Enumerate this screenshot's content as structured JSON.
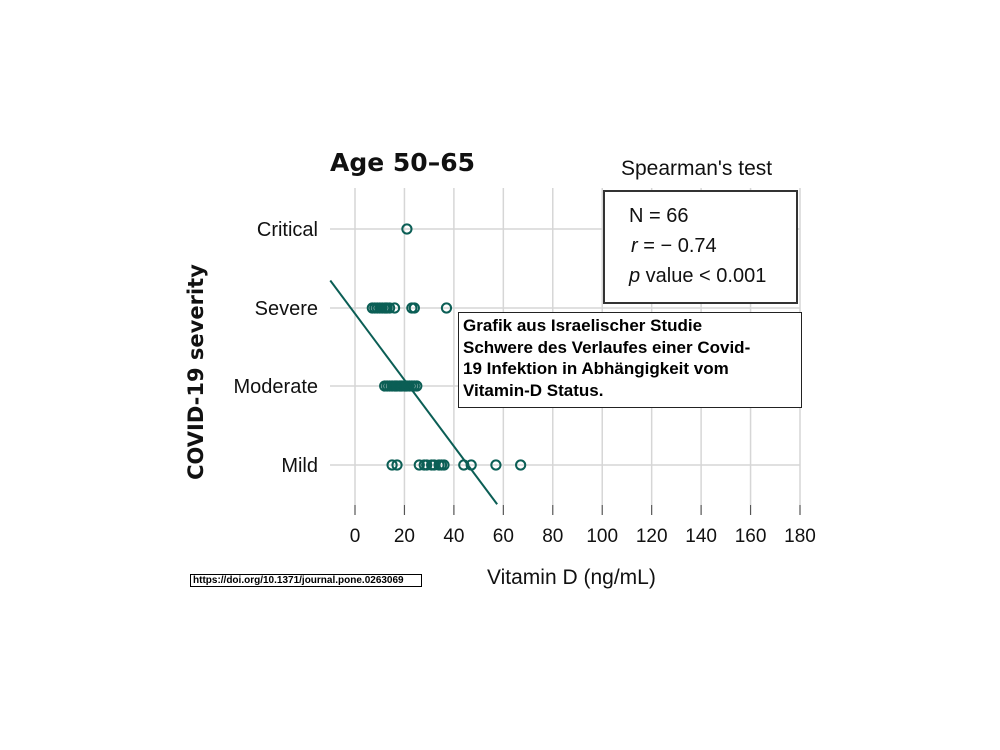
{
  "chart_data": {
    "type": "scatter",
    "title": "Age 50–65",
    "xlabel": "Vitamin D (ng/mL)",
    "ylabel": "COVID-19 severity",
    "xlim": [
      -10,
      180
    ],
    "x_ticks": [
      0,
      20,
      40,
      60,
      80,
      100,
      120,
      140,
      160,
      180
    ],
    "categories": [
      "Mild",
      "Moderate",
      "Severe",
      "Critical"
    ],
    "grid": true,
    "points": [
      {
        "category": "Critical",
        "x": 21
      },
      {
        "category": "Severe",
        "x": 7
      },
      {
        "category": "Severe",
        "x": 8
      },
      {
        "category": "Severe",
        "x": 9
      },
      {
        "category": "Severe",
        "x": 10
      },
      {
        "category": "Severe",
        "x": 11
      },
      {
        "category": "Severe",
        "x": 12
      },
      {
        "category": "Severe",
        "x": 12.5
      },
      {
        "category": "Severe",
        "x": 13
      },
      {
        "category": "Severe",
        "x": 14
      },
      {
        "category": "Severe",
        "x": 16
      },
      {
        "category": "Severe",
        "x": 23
      },
      {
        "category": "Severe",
        "x": 24
      },
      {
        "category": "Severe",
        "x": 37
      },
      {
        "category": "Moderate",
        "x": 12
      },
      {
        "category": "Moderate",
        "x": 13
      },
      {
        "category": "Moderate",
        "x": 14
      },
      {
        "category": "Moderate",
        "x": 15
      },
      {
        "category": "Moderate",
        "x": 16
      },
      {
        "category": "Moderate",
        "x": 16.5
      },
      {
        "category": "Moderate",
        "x": 17
      },
      {
        "category": "Moderate",
        "x": 18
      },
      {
        "category": "Moderate",
        "x": 18.5
      },
      {
        "category": "Moderate",
        "x": 19
      },
      {
        "category": "Moderate",
        "x": 20
      },
      {
        "category": "Moderate",
        "x": 20.5
      },
      {
        "category": "Moderate",
        "x": 21
      },
      {
        "category": "Moderate",
        "x": 22
      },
      {
        "category": "Moderate",
        "x": 23
      },
      {
        "category": "Moderate",
        "x": 24
      },
      {
        "category": "Moderate",
        "x": 25
      },
      {
        "category": "Mild",
        "x": 15
      },
      {
        "category": "Mild",
        "x": 17
      },
      {
        "category": "Mild",
        "x": 26
      },
      {
        "category": "Mild",
        "x": 28
      },
      {
        "category": "Mild",
        "x": 29
      },
      {
        "category": "Mild",
        "x": 31
      },
      {
        "category": "Mild",
        "x": 32
      },
      {
        "category": "Mild",
        "x": 34
      },
      {
        "category": "Mild",
        "x": 35
      },
      {
        "category": "Mild",
        "x": 36
      },
      {
        "category": "Mild",
        "x": 44
      },
      {
        "category": "Mild",
        "x": 47
      },
      {
        "category": "Mild",
        "x": 57
      },
      {
        "category": "Mild",
        "x": 67
      }
    ],
    "trend_line": {
      "from": [
        -10,
        2.35
      ],
      "to": [
        57.5,
        -0.5
      ]
    },
    "marker_color": "#0b5e55",
    "line_color": "#0b5e55"
  },
  "stats": {
    "title": "Spearman's test",
    "n_line": "N = 66",
    "r_symbol": "r",
    "r_rest": " = − 0.74",
    "p_symbol": "p",
    "p_rest": " value < 0.001"
  },
  "note": {
    "lines": [
      "Grafik aus Israelischer Studie",
      "Schwere des Verlaufes einer Covid-",
      "19 Infektion in Abhängigkeit vom",
      "Vitamin-D Status."
    ]
  },
  "source_doi": "https://doi.org/10.1371/journal.pone.0263069"
}
